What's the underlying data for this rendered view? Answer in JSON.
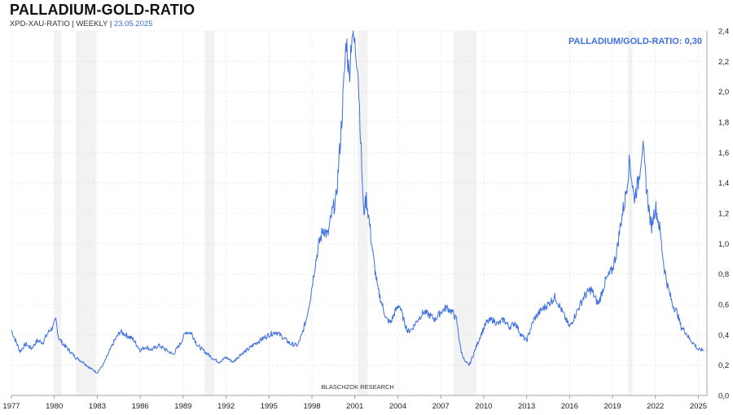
{
  "header": {
    "title": "PALLADIUM-GOLD-RATIO",
    "subtitle_prefix": "XPD-XAU-RATIO | WEEKLY |",
    "date": "23.05.2025"
  },
  "colors": {
    "line": "#3d6fe0",
    "recession": "#f2f2f2",
    "grid": "#d9d9d9",
    "axis": "#888888"
  },
  "chart_data": {
    "type": "line",
    "title": "PALLADIUM-GOLD-RATIO",
    "ylabel": "",
    "xlabel": "",
    "ylim": [
      0,
      2.4
    ],
    "xlim": [
      1977.0,
      2025.6
    ],
    "grid": true,
    "y_axis_side": "right",
    "y_ticks": [
      "0,0",
      "0,2",
      "0,4",
      "0,6",
      "0,8",
      "1,0",
      "1,2",
      "1,4",
      "1,6",
      "1,8",
      "2,0",
      "2,2",
      "2,4"
    ],
    "x_ticks": [
      "1977",
      "1980",
      "1983",
      "1986",
      "1989",
      "1992",
      "1995",
      "1998",
      "2001",
      "2004",
      "2007",
      "2010",
      "2013",
      "2016",
      "2019",
      "2022",
      "2025"
    ],
    "annotation": "PALLADIUM/GOLD-RATIO: 0,30",
    "source_label": "BLASCHZOK RESEARCH",
    "recessions": [
      [
        1980.0,
        1980.5
      ],
      [
        1981.5,
        1982.9
      ],
      [
        1990.5,
        1991.2
      ],
      [
        2001.2,
        2001.9
      ],
      [
        2007.9,
        2009.5
      ],
      [
        2020.1,
        2020.4
      ]
    ],
    "series": [
      {
        "x": [
          1977.0,
          1977.3,
          1977.6,
          1978.0,
          1978.4,
          1978.8,
          1979.2,
          1979.6,
          1979.9,
          1980.1,
          1980.3,
          1980.6,
          1981.0,
          1981.5,
          1982.0,
          1982.5,
          1983.0,
          1983.4,
          1983.8,
          1984.2,
          1984.6,
          1985.0,
          1985.5,
          1986.0,
          1986.4,
          1986.8,
          1987.3,
          1987.8,
          1988.3,
          1988.8,
          1989.2,
          1989.6,
          1990.0,
          1990.5,
          1991.0,
          1991.5,
          1992.0,
          1992.5,
          1993.0,
          1993.5,
          1994.0,
          1994.5,
          1995.0,
          1995.5,
          1996.0,
          1996.5,
          1997.0,
          1997.3,
          1997.6,
          1997.9,
          1998.2,
          1998.5,
          1998.8,
          1999.1,
          1999.4,
          1999.7,
          2000.0,
          2000.2,
          2000.4,
          2000.6,
          2000.8,
          2001.0,
          2001.2,
          2001.4,
          2001.6,
          2001.8,
          2002.0,
          2002.3,
          2002.6,
          2002.9,
          2003.2,
          2003.5,
          2003.8,
          2004.1,
          2004.4,
          2004.7,
          2005.0,
          2005.4,
          2005.8,
          2006.2,
          2006.6,
          2007.0,
          2007.4,
          2007.8,
          2008.1,
          2008.4,
          2008.7,
          2009.0,
          2009.4,
          2009.8,
          2010.2,
          2010.6,
          2011.0,
          2011.4,
          2011.8,
          2012.2,
          2012.6,
          2013.0,
          2013.5,
          2014.0,
          2014.5,
          2015.0,
          2015.5,
          2016.0,
          2016.5,
          2017.0,
          2017.5,
          2018.0,
          2018.5,
          2019.0,
          2019.3,
          2019.6,
          2019.9,
          2020.2,
          2020.5,
          2020.8,
          2021.1,
          2021.4,
          2021.7,
          2022.0,
          2022.3,
          2022.6,
          2022.9,
          2023.2,
          2023.5,
          2023.8,
          2024.1,
          2024.4,
          2024.7,
          2025.0,
          2025.4
        ],
        "y": [
          0.43,
          0.36,
          0.29,
          0.34,
          0.31,
          0.36,
          0.35,
          0.42,
          0.45,
          0.5,
          0.38,
          0.34,
          0.3,
          0.25,
          0.22,
          0.18,
          0.15,
          0.2,
          0.28,
          0.36,
          0.42,
          0.4,
          0.37,
          0.3,
          0.32,
          0.3,
          0.33,
          0.3,
          0.27,
          0.34,
          0.42,
          0.41,
          0.33,
          0.29,
          0.25,
          0.22,
          0.25,
          0.22,
          0.27,
          0.3,
          0.34,
          0.37,
          0.4,
          0.42,
          0.38,
          0.34,
          0.33,
          0.4,
          0.5,
          0.65,
          0.85,
          1.0,
          1.1,
          1.05,
          1.2,
          1.3,
          1.7,
          2.0,
          2.35,
          2.1,
          2.4,
          2.3,
          2.2,
          1.7,
          1.2,
          1.3,
          1.15,
          0.9,
          0.7,
          0.6,
          0.5,
          0.48,
          0.55,
          0.6,
          0.5,
          0.42,
          0.44,
          0.5,
          0.55,
          0.53,
          0.5,
          0.55,
          0.58,
          0.55,
          0.5,
          0.3,
          0.22,
          0.2,
          0.3,
          0.4,
          0.48,
          0.5,
          0.47,
          0.5,
          0.45,
          0.48,
          0.4,
          0.36,
          0.5,
          0.56,
          0.6,
          0.65,
          0.55,
          0.45,
          0.55,
          0.65,
          0.7,
          0.6,
          0.75,
          0.83,
          0.95,
          1.15,
          1.3,
          1.55,
          1.3,
          1.4,
          1.65,
          1.35,
          1.1,
          1.25,
          1.1,
          0.85,
          0.7,
          0.6,
          0.55,
          0.45,
          0.42,
          0.37,
          0.34,
          0.3,
          0.3
        ]
      }
    ]
  }
}
